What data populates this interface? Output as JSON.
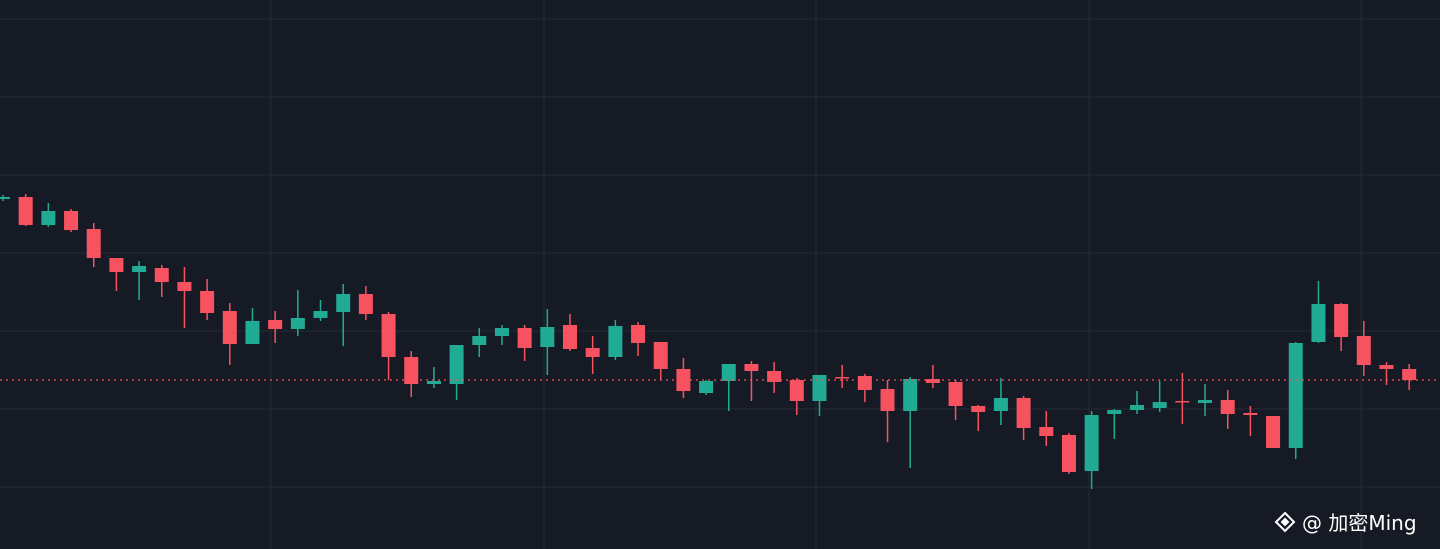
{
  "chart_data": {
    "type": "candlestick",
    "ylim": [
      0,
      549
    ],
    "up_color": "#22ab94",
    "down_color": "#f7525f",
    "open": [
      350,
      352,
      324,
      338,
      320,
      291,
      277,
      281,
      267,
      258,
      238,
      205,
      229,
      220,
      231,
      237,
      255,
      235,
      192,
      165,
      165,
      204,
      213,
      221,
      202,
      224,
      201,
      192,
      224,
      207,
      180,
      156,
      168,
      185,
      178,
      169,
      148,
      172,
      173,
      160,
      138,
      170,
      167,
      143,
      138,
      151,
      122,
      114,
      78,
      135,
      139,
      141,
      148,
      146,
      149,
      136,
      133,
      101,
      207,
      245,
      213,
      184,
      180
    ],
    "high": [
      354,
      355,
      346,
      340,
      326,
      291,
      288,
      284,
      282,
      270,
      246,
      241,
      238,
      259,
      249,
      265,
      263,
      237,
      198,
      182,
      204,
      221,
      224,
      224,
      240,
      235,
      213,
      229,
      227,
      207,
      191,
      169,
      185,
      188,
      187,
      171,
      174,
      184,
      175,
      169,
      172,
      184,
      169,
      144,
      171,
      153,
      138,
      116,
      138,
      140,
      158,
      168,
      176,
      165,
      159,
      143,
      133,
      207,
      268,
      246,
      228,
      187,
      185
    ],
    "low": [
      348,
      323,
      322,
      317,
      282,
      258,
      249,
      252,
      221,
      229,
      184,
      205,
      206,
      213,
      228,
      203,
      229,
      169,
      152,
      161,
      149,
      192,
      204,
      188,
      174,
      198,
      175,
      189,
      193,
      169,
      151,
      154,
      138,
      148,
      156,
      134,
      133,
      161,
      147,
      107,
      81,
      161,
      129,
      118,
      124,
      109,
      103,
      75,
      60,
      110,
      135,
      137,
      125,
      133,
      120,
      113,
      101,
      90,
      206,
      198,
      173,
      164,
      159
    ],
    "close": [
      352,
      324,
      338,
      319,
      291,
      277,
      283,
      267,
      258,
      236,
      205,
      228,
      220,
      231,
      238,
      255,
      235,
      192,
      165,
      168,
      204,
      213,
      221,
      201,
      222,
      200,
      192,
      223,
      206,
      180,
      158,
      168,
      185,
      178,
      167,
      148,
      174,
      171,
      159,
      138,
      170,
      166,
      143,
      137,
      151,
      121,
      113,
      77,
      134,
      139,
      144,
      147,
      147,
      149,
      135,
      134,
      101,
      206,
      245,
      212,
      184,
      180,
      169
    ],
    "watermark": "@ 加密Ming"
  }
}
